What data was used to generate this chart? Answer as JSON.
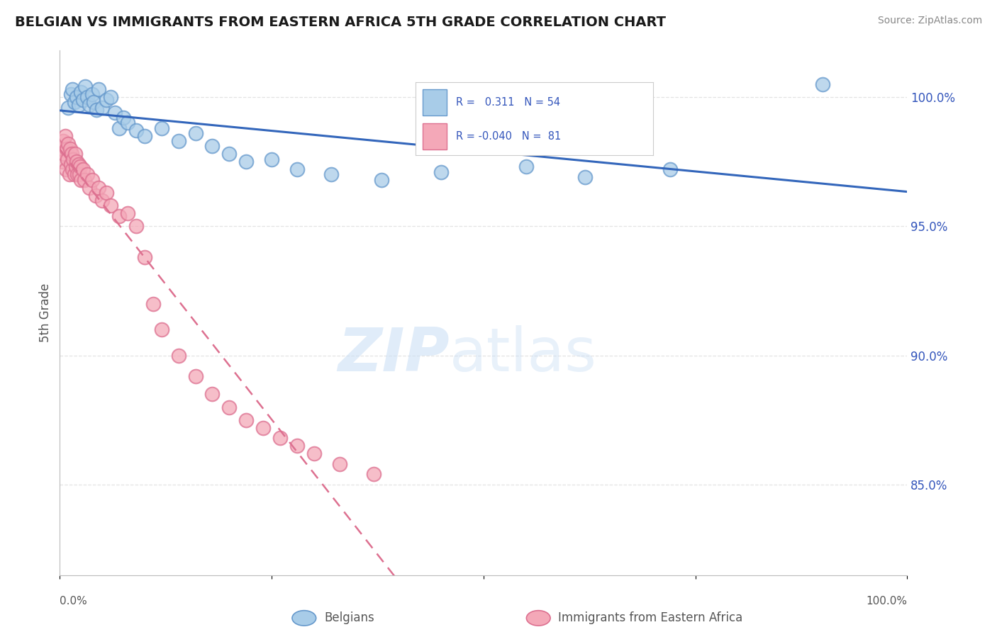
{
  "title": "BELGIAN VS IMMIGRANTS FROM EASTERN AFRICA 5TH GRADE CORRELATION CHART",
  "source": "Source: ZipAtlas.com",
  "ylabel": "5th Grade",
  "xlim": [
    0.0,
    100.0
  ],
  "ylim": [
    81.5,
    101.8
  ],
  "yticks": [
    85.0,
    90.0,
    95.0,
    100.0
  ],
  "ytick_labels": [
    "85.0%",
    "90.0%",
    "95.0%",
    "100.0%"
  ],
  "belgian_color": "#a8cce8",
  "belgian_edge": "#6699cc",
  "immigrant_color": "#f4a8b8",
  "immigrant_edge": "#dd7090",
  "trend_blue": "#3366bb",
  "trend_pink": "#dd7090",
  "legend_r1": "0.311",
  "legend_n1": "54",
  "legend_r2": "-0.040",
  "legend_n2": "81",
  "legend_color": "#3355bb",
  "watermark_color": "#cce0f5",
  "background_color": "#ffffff",
  "grid_color": "#dddddd",
  "belgian_x": [
    1.0,
    1.3,
    1.5,
    1.7,
    2.0,
    2.2,
    2.5,
    2.7,
    3.0,
    3.2,
    3.5,
    3.8,
    4.0,
    4.3,
    4.6,
    5.0,
    5.5,
    6.0,
    6.5,
    7.0,
    7.5,
    8.0,
    9.0,
    10.0,
    12.0,
    14.0,
    16.0,
    18.0,
    20.0,
    22.0,
    25.0,
    28.0,
    32.0,
    38.0,
    45.0,
    55.0,
    62.0,
    72.0,
    90.0
  ],
  "belgian_y": [
    99.6,
    100.1,
    100.3,
    99.8,
    100.0,
    99.7,
    100.2,
    99.9,
    100.4,
    100.0,
    99.7,
    100.1,
    99.8,
    99.5,
    100.3,
    99.6,
    99.9,
    100.0,
    99.4,
    98.8,
    99.2,
    99.0,
    98.7,
    98.5,
    98.8,
    98.3,
    98.6,
    98.1,
    97.8,
    97.5,
    97.6,
    97.2,
    97.0,
    96.8,
    97.1,
    97.3,
    96.9,
    97.2,
    100.5
  ],
  "immigrant_x": [
    0.2,
    0.3,
    0.4,
    0.5,
    0.6,
    0.7,
    0.8,
    0.9,
    1.0,
    1.1,
    1.2,
    1.3,
    1.4,
    1.5,
    1.6,
    1.7,
    1.8,
    1.9,
    2.0,
    2.1,
    2.2,
    2.3,
    2.4,
    2.5,
    2.7,
    2.9,
    3.2,
    3.5,
    3.8,
    4.2,
    4.6,
    5.0,
    5.5,
    6.0,
    7.0,
    8.0,
    9.0,
    10.0,
    11.0,
    12.0,
    14.0,
    16.0,
    18.0,
    20.0,
    22.0,
    24.0,
    26.0,
    28.0,
    30.0,
    33.0,
    37.0
  ],
  "immigrant_y": [
    98.0,
    97.5,
    98.3,
    97.8,
    98.5,
    97.2,
    98.0,
    97.6,
    98.2,
    97.0,
    98.0,
    97.4,
    97.8,
    97.2,
    97.6,
    97.0,
    97.8,
    97.3,
    97.5,
    97.0,
    97.4,
    97.0,
    97.3,
    96.8,
    97.2,
    96.8,
    97.0,
    96.5,
    96.8,
    96.2,
    96.5,
    96.0,
    96.3,
    95.8,
    95.4,
    95.5,
    95.0,
    93.8,
    92.0,
    91.0,
    90.0,
    89.2,
    88.5,
    88.0,
    87.5,
    87.2,
    86.8,
    86.5,
    86.2,
    85.8,
    85.4
  ]
}
